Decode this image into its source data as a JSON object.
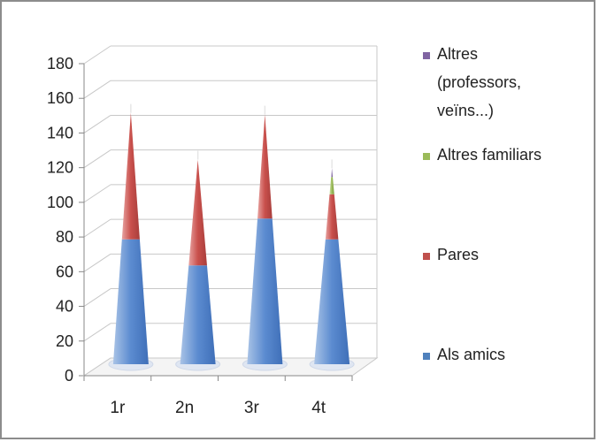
{
  "chart_data": {
    "type": "bar",
    "subtype": "stacked-3d-cone",
    "categories": [
      "1r",
      "2n",
      "3r",
      "4t"
    ],
    "series": [
      {
        "name": "Als amics",
        "values": [
          72,
          57,
          84,
          72
        ],
        "color": "#4f81bd"
      },
      {
        "name": "Pares",
        "values": [
          73,
          61,
          60,
          26
        ],
        "color": "#c0504d"
      },
      {
        "name": "Altres familiars",
        "values": [
          0,
          0,
          0,
          10
        ],
        "color": "#9bbb59"
      },
      {
        "name": "Altres (professors, veïns...)",
        "values": [
          0,
          0,
          0,
          5
        ],
        "color": "#8064a2"
      }
    ],
    "y_ticks": [
      "0",
      "20",
      "40",
      "60",
      "80",
      "100",
      "120",
      "140",
      "160",
      "180"
    ],
    "ylim": [
      0,
      180
    ],
    "grid": true,
    "legend_position": "right",
    "title": "",
    "xlabel": "",
    "ylabel": ""
  },
  "legend": [
    {
      "lines": [
        "Altres",
        "(professors,",
        "veïns...)"
      ],
      "color": "#8064a2"
    },
    {
      "lines": [
        "Altres familiars"
      ],
      "color": "#9bbb59"
    },
    {
      "lines": [
        "Pares"
      ],
      "color": "#c0504d"
    },
    {
      "lines": [
        "Als amics"
      ],
      "color": "#4f81bd"
    }
  ]
}
